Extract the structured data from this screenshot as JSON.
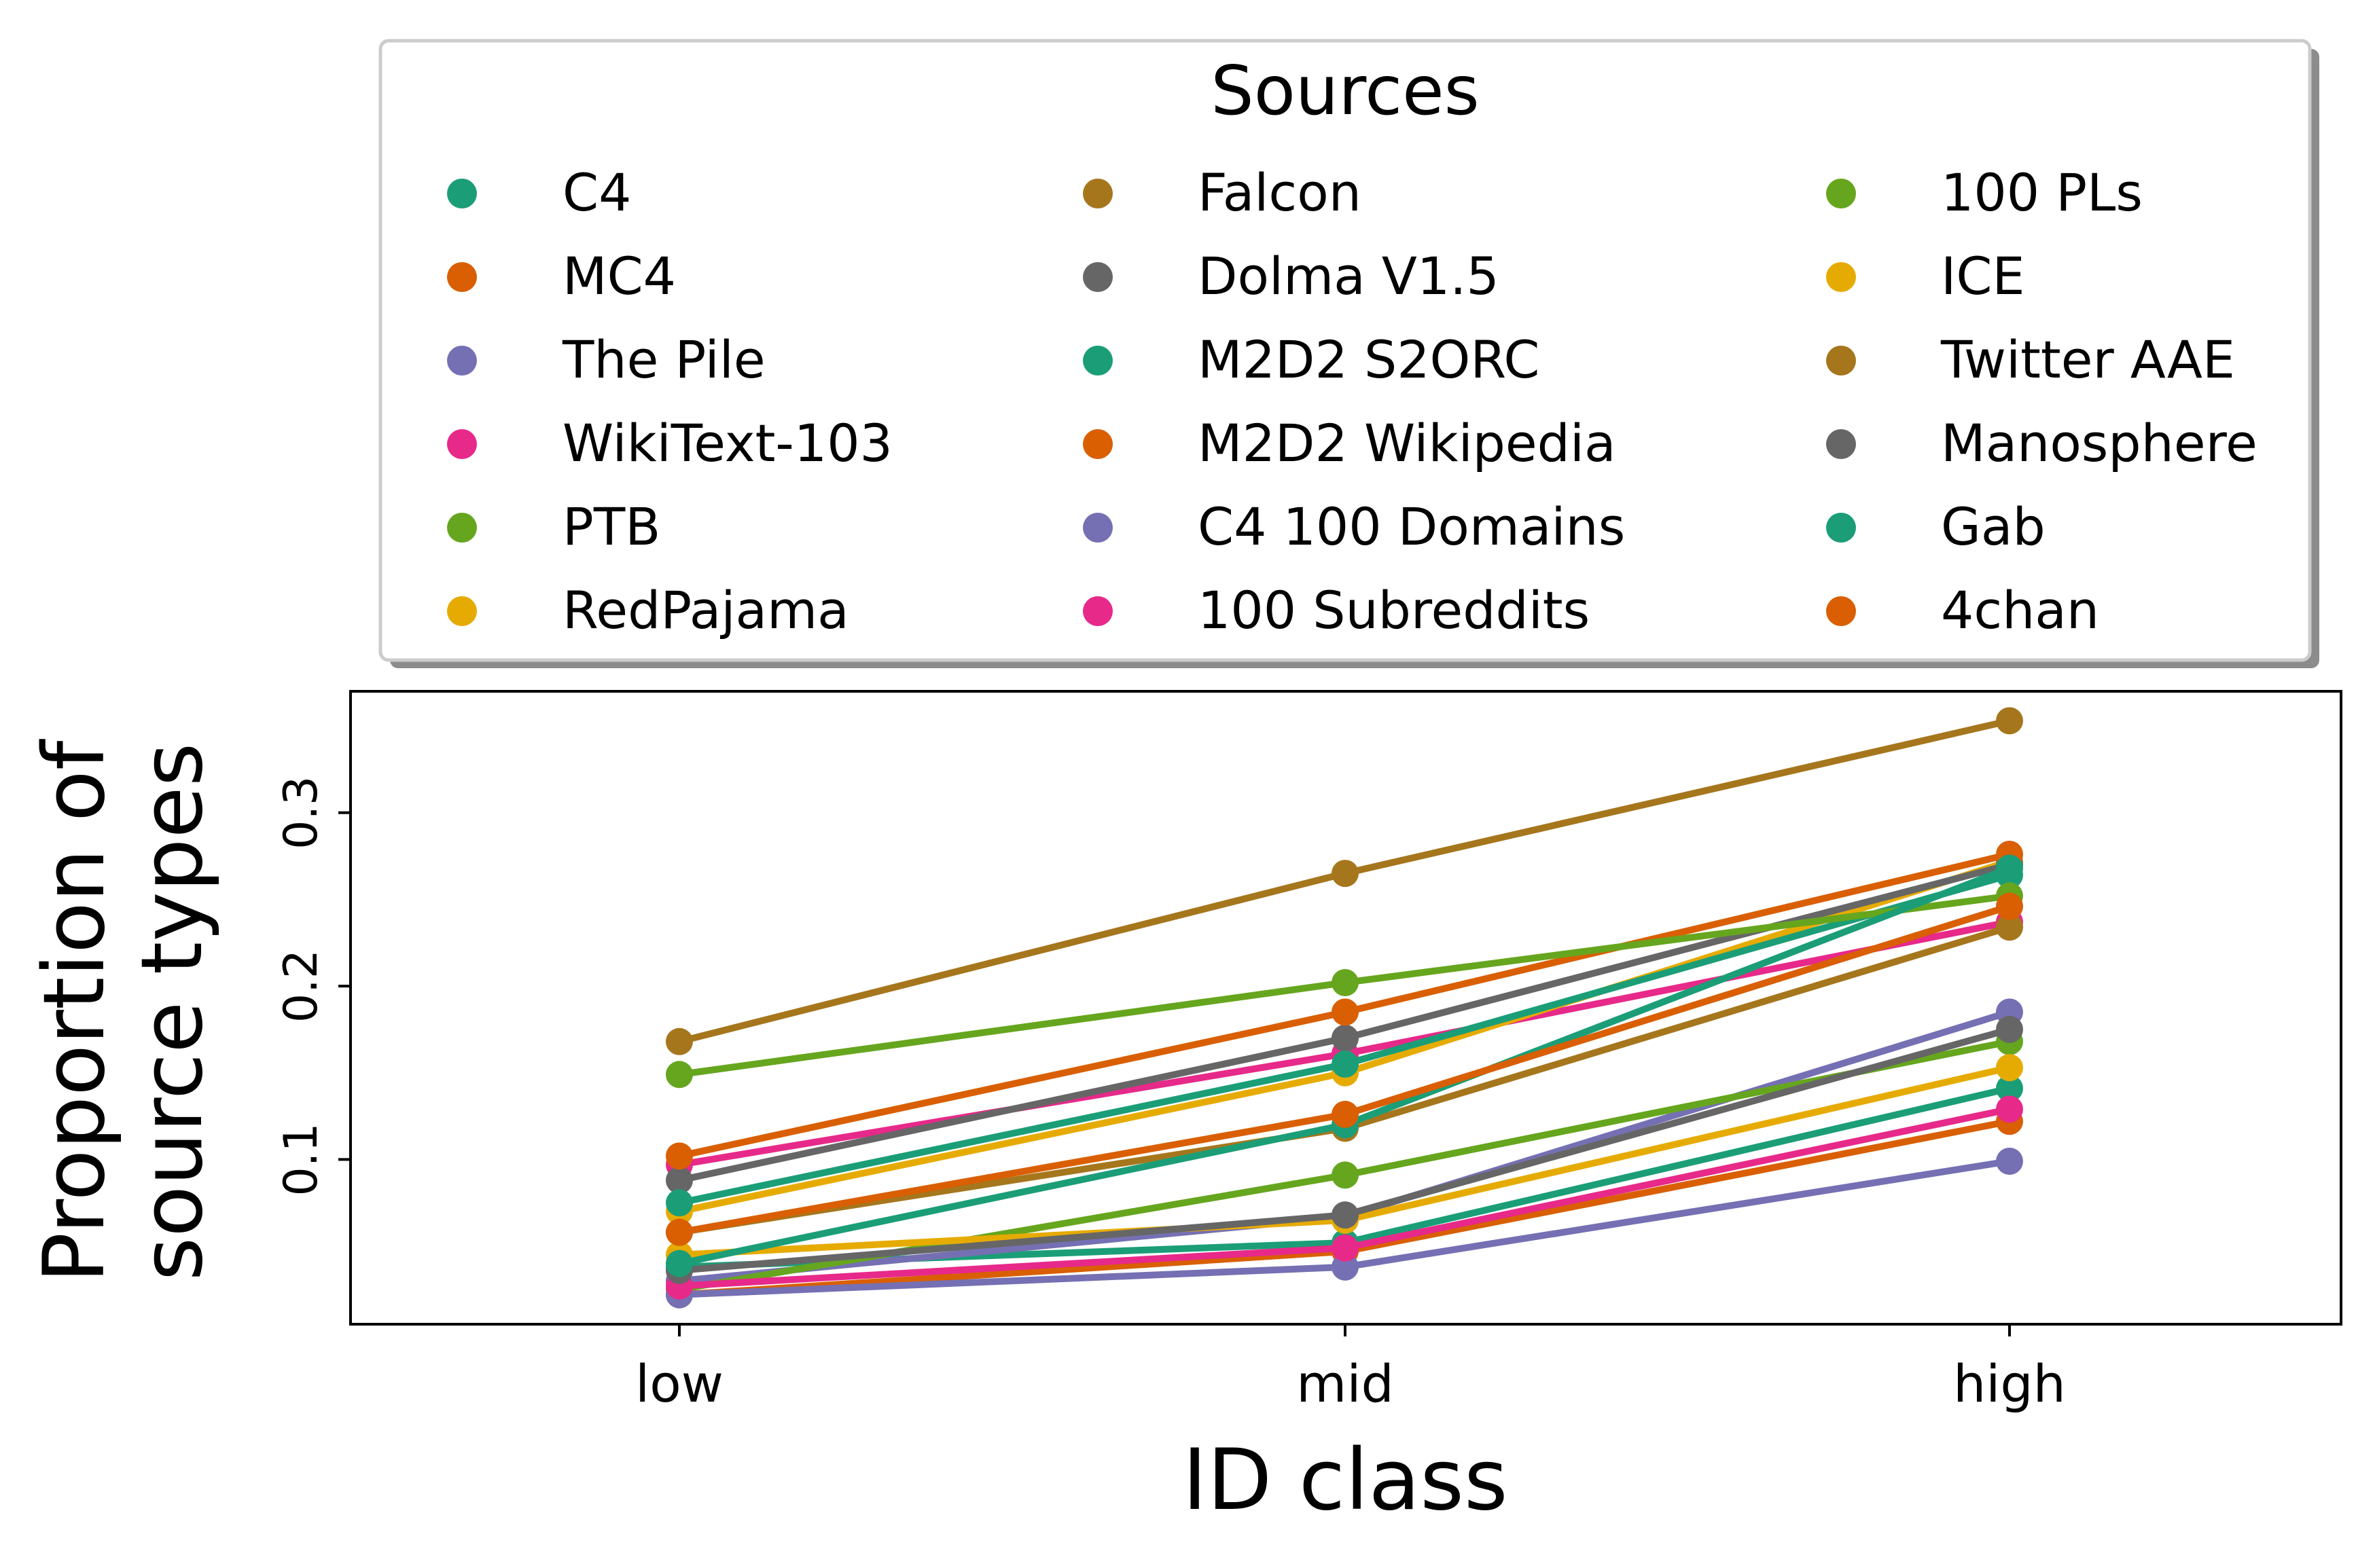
{
  "chart_data": {
    "type": "line",
    "xlabel": "ID class",
    "ylabel": [
      "Proportion of",
      "source types"
    ],
    "categories": [
      "low",
      "mid",
      "high"
    ],
    "ylim": [
      0.005,
      0.37
    ],
    "yticks": [
      0.1,
      0.2,
      0.3
    ],
    "ytick_labels": [
      "0.1",
      "0.2",
      "0.3"
    ],
    "grid": false,
    "legend": {
      "title": "Sources",
      "placement": "top",
      "columns": 3
    },
    "series": [
      {
        "name": "C4",
        "color": "#1b9e77",
        "values": [
          0.038,
          0.052,
          0.141
        ]
      },
      {
        "name": "MC4",
        "color": "#d95f02",
        "values": [
          0.022,
          0.047,
          0.122
        ]
      },
      {
        "name": "The Pile",
        "color": "#7570b3",
        "values": [
          0.03,
          0.067,
          0.185
        ]
      },
      {
        "name": "WikiText-103",
        "color": "#e7298a",
        "values": [
          0.097,
          0.161,
          0.237
        ]
      },
      {
        "name": "PTB",
        "color": "#66a61e",
        "values": [
          0.025,
          0.091,
          0.168
        ]
      },
      {
        "name": "RedPajama",
        "color": "#e6ab02",
        "values": [
          0.07,
          0.15,
          0.272
        ]
      },
      {
        "name": "Falcon",
        "color": "#a6761d",
        "values": [
          0.168,
          0.265,
          0.353
        ]
      },
      {
        "name": "Dolma V1.5",
        "color": "#666666",
        "values": [
          0.088,
          0.17,
          0.27
        ]
      },
      {
        "name": "M2D2 S2ORC",
        "color": "#1b9e77",
        "values": [
          0.075,
          0.155,
          0.264
        ]
      },
      {
        "name": "M2D2 Wikipedia",
        "color": "#d95f02",
        "values": [
          0.102,
          0.185,
          0.276
        ]
      },
      {
        "name": "C4 100 Domains",
        "color": "#7570b3",
        "values": [
          0.022,
          0.038,
          0.099
        ]
      },
      {
        "name": "100 Subreddits",
        "color": "#e7298a",
        "values": [
          0.027,
          0.049,
          0.129
        ]
      },
      {
        "name": "100 PLs",
        "color": "#66a61e",
        "values": [
          0.149,
          0.202,
          0.252
        ]
      },
      {
        "name": "ICE",
        "color": "#e6ab02",
        "values": [
          0.045,
          0.065,
          0.153
        ]
      },
      {
        "name": "Twitter AAE",
        "color": "#a6761d",
        "values": [
          0.058,
          0.118,
          0.234
        ]
      },
      {
        "name": "Manosphere",
        "color": "#666666",
        "values": [
          0.036,
          0.068,
          0.175
        ]
      },
      {
        "name": "Gab",
        "color": "#1b9e77",
        "values": [
          0.04,
          0.12,
          0.268
        ]
      },
      {
        "name": "4chan",
        "color": "#d95f02",
        "values": [
          0.058,
          0.126,
          0.246
        ]
      }
    ]
  }
}
